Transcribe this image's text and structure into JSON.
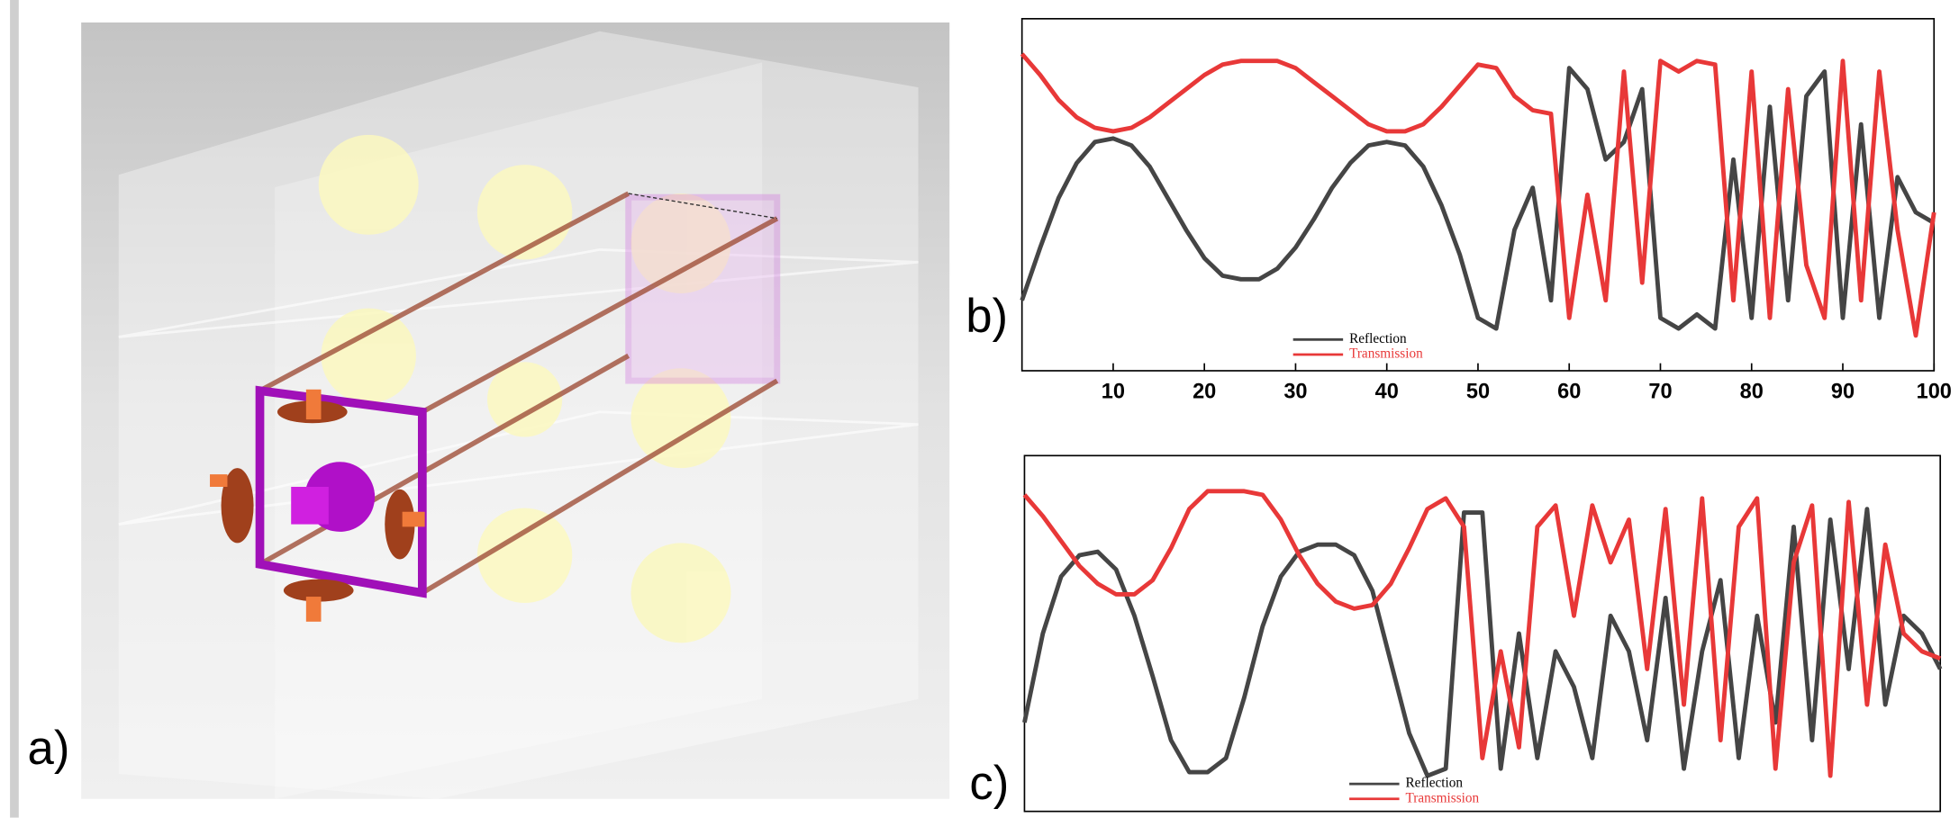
{
  "panel_labels": [
    "a)",
    "b)",
    "c)"
  ],
  "chart_data": [
    {
      "type": "line",
      "legend": "bottom",
      "x": [
        0,
        2,
        4,
        6,
        8,
        10,
        12,
        14,
        16,
        18,
        20,
        22,
        24,
        26,
        28,
        30,
        32,
        34,
        36,
        38,
        40,
        42,
        44,
        46,
        48,
        50,
        52,
        54,
        56,
        58,
        60,
        62,
        64,
        66,
        68,
        70,
        72,
        74,
        76,
        78,
        80,
        82,
        84,
        86,
        88,
        90,
        92,
        94,
        96,
        98,
        100
      ],
      "xlim": [
        0,
        100
      ],
      "ylim": [
        0,
        1
      ],
      "xticks": [
        10,
        20,
        30,
        40,
        50,
        60,
        70,
        80,
        90,
        100
      ],
      "series": [
        {
          "name": "Reflection",
          "color": "#454545",
          "values": [
            0.2,
            0.35,
            0.49,
            0.59,
            0.65,
            0.66,
            0.64,
            0.58,
            0.49,
            0.4,
            0.32,
            0.27,
            0.26,
            0.26,
            0.29,
            0.35,
            0.43,
            0.52,
            0.59,
            0.64,
            0.65,
            0.64,
            0.58,
            0.47,
            0.33,
            0.15,
            0.12,
            0.4,
            0.52,
            0.2,
            0.86,
            0.8,
            0.6,
            0.65,
            0.8,
            0.15,
            0.12,
            0.16,
            0.12,
            0.6,
            0.15,
            0.75,
            0.2,
            0.78,
            0.85,
            0.15,
            0.7,
            0.15,
            0.55,
            0.45,
            0.42
          ]
        },
        {
          "name": "Transmission",
          "color": "#e83838",
          "values": [
            0.9,
            0.84,
            0.77,
            0.72,
            0.69,
            0.68,
            0.69,
            0.72,
            0.76,
            0.8,
            0.84,
            0.87,
            0.88,
            0.88,
            0.88,
            0.86,
            0.82,
            0.78,
            0.74,
            0.7,
            0.68,
            0.68,
            0.7,
            0.75,
            0.81,
            0.87,
            0.86,
            0.78,
            0.74,
            0.73,
            0.15,
            0.5,
            0.2,
            0.85,
            0.25,
            0.88,
            0.85,
            0.88,
            0.87,
            0.2,
            0.85,
            0.15,
            0.8,
            0.3,
            0.15,
            0.88,
            0.2,
            0.85,
            0.4,
            0.1,
            0.45
          ]
        }
      ]
    },
    {
      "type": "line",
      "legend": "bottom",
      "x": [
        0,
        2,
        4,
        6,
        8,
        10,
        12,
        14,
        16,
        18,
        20,
        22,
        24,
        26,
        28,
        30,
        32,
        34,
        36,
        38,
        40,
        42,
        44,
        46,
        48,
        50,
        52,
        54,
        56,
        58,
        60,
        62,
        64,
        66,
        68,
        70,
        72,
        74,
        76,
        78,
        80,
        82,
        84,
        86,
        88,
        90,
        92,
        94,
        96,
        98,
        100
      ],
      "xlim": [
        0,
        100
      ],
      "ylim": [
        0,
        1
      ],
      "series": [
        {
          "name": "Reflection",
          "color": "#454545",
          "values": [
            0.25,
            0.5,
            0.66,
            0.72,
            0.73,
            0.68,
            0.55,
            0.38,
            0.2,
            0.11,
            0.11,
            0.15,
            0.32,
            0.52,
            0.66,
            0.73,
            0.75,
            0.75,
            0.72,
            0.62,
            0.42,
            0.22,
            0.1,
            0.12,
            0.84,
            0.84,
            0.12,
            0.5,
            0.15,
            0.45,
            0.35,
            0.15,
            0.55,
            0.45,
            0.2,
            0.6,
            0.12,
            0.45,
            0.65,
            0.15,
            0.55,
            0.25,
            0.8,
            0.2,
            0.82,
            0.4,
            0.85,
            0.3,
            0.55,
            0.5,
            0.4
          ]
        },
        {
          "name": "Transmission",
          "color": "#e83838",
          "values": [
            0.89,
            0.83,
            0.76,
            0.69,
            0.64,
            0.61,
            0.61,
            0.65,
            0.74,
            0.85,
            0.9,
            0.9,
            0.9,
            0.89,
            0.82,
            0.72,
            0.64,
            0.59,
            0.57,
            0.58,
            0.64,
            0.74,
            0.85,
            0.88,
            0.8,
            0.15,
            0.45,
            0.18,
            0.8,
            0.86,
            0.55,
            0.86,
            0.7,
            0.82,
            0.4,
            0.85,
            0.3,
            0.88,
            0.2,
            0.8,
            0.88,
            0.12,
            0.7,
            0.86,
            0.1,
            0.87,
            0.3,
            0.75,
            0.5,
            0.45,
            0.43
          ]
        }
      ]
    }
  ]
}
